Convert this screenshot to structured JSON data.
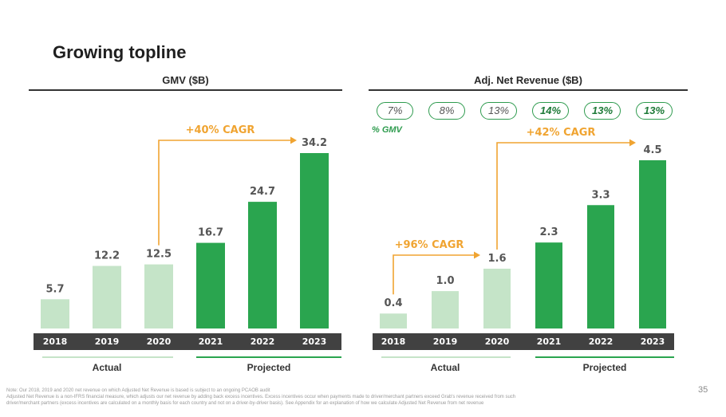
{
  "page_title": "Growing topline",
  "colors": {
    "actual": "#c5e4c8",
    "projected": "#2aa54f",
    "cagr": "#f0a431",
    "axis_band": "#414141"
  },
  "chart_data": [
    {
      "type": "bar",
      "title": "GMV ($B)",
      "categories": [
        "2018",
        "2019",
        "2020",
        "2021",
        "2022",
        "2023"
      ],
      "values": [
        5.7,
        12.2,
        12.5,
        16.7,
        24.7,
        34.2
      ],
      "value_labels": [
        "5.7",
        "12.2",
        "12.5",
        "16.7",
        "24.7",
        "34.2"
      ],
      "actual_count": 3,
      "ylim": [
        0,
        34.2
      ],
      "groups": [
        "Actual",
        "Projected"
      ],
      "annotations": [
        {
          "text": "+40% CAGR",
          "from": "2020",
          "to": "2023"
        }
      ]
    },
    {
      "type": "bar",
      "title": "Adj. Net Revenue ($B)",
      "categories": [
        "2018",
        "2019",
        "2020",
        "2021",
        "2022",
        "2023"
      ],
      "values": [
        0.4,
        1.0,
        1.6,
        2.3,
        3.3,
        4.5
      ],
      "value_labels": [
        "0.4",
        "1.0",
        "1.6",
        "2.3",
        "3.3",
        "4.5"
      ],
      "actual_count": 3,
      "ylim": [
        0,
        4.5
      ],
      "groups": [
        "Actual",
        "Projected"
      ],
      "pct_gmv_label": "% GMV",
      "pct_gmv": [
        "7%",
        "8%",
        "13%",
        "14%",
        "13%",
        "13%"
      ],
      "annotations": [
        {
          "text": "+96% CAGR",
          "from": "2018",
          "to": "2020"
        },
        {
          "text": "+42% CAGR",
          "from": "2020",
          "to": "2023"
        }
      ]
    }
  ],
  "footnote": [
    "Note: Our 2018, 2019 and 2020 net revenue on which Adjusted Net Revenue is based is subject to an ongoing PCAOB audit",
    "Adjusted Net Revenue is a non-IFRS financial measure, which adjusts our net revenue by adding back excess incentives. Excess incentives occur when payments made to driver/merchant partners exceed Grab's revenue received from such",
    "driver/merchant partners (excess incentives are calculated on a monthly basis for each country and not on a driver-by-driver basis). See Appendix for an explanation of how we calculate Adjusted Net Revenue from net revenue"
  ],
  "page_number": "35"
}
